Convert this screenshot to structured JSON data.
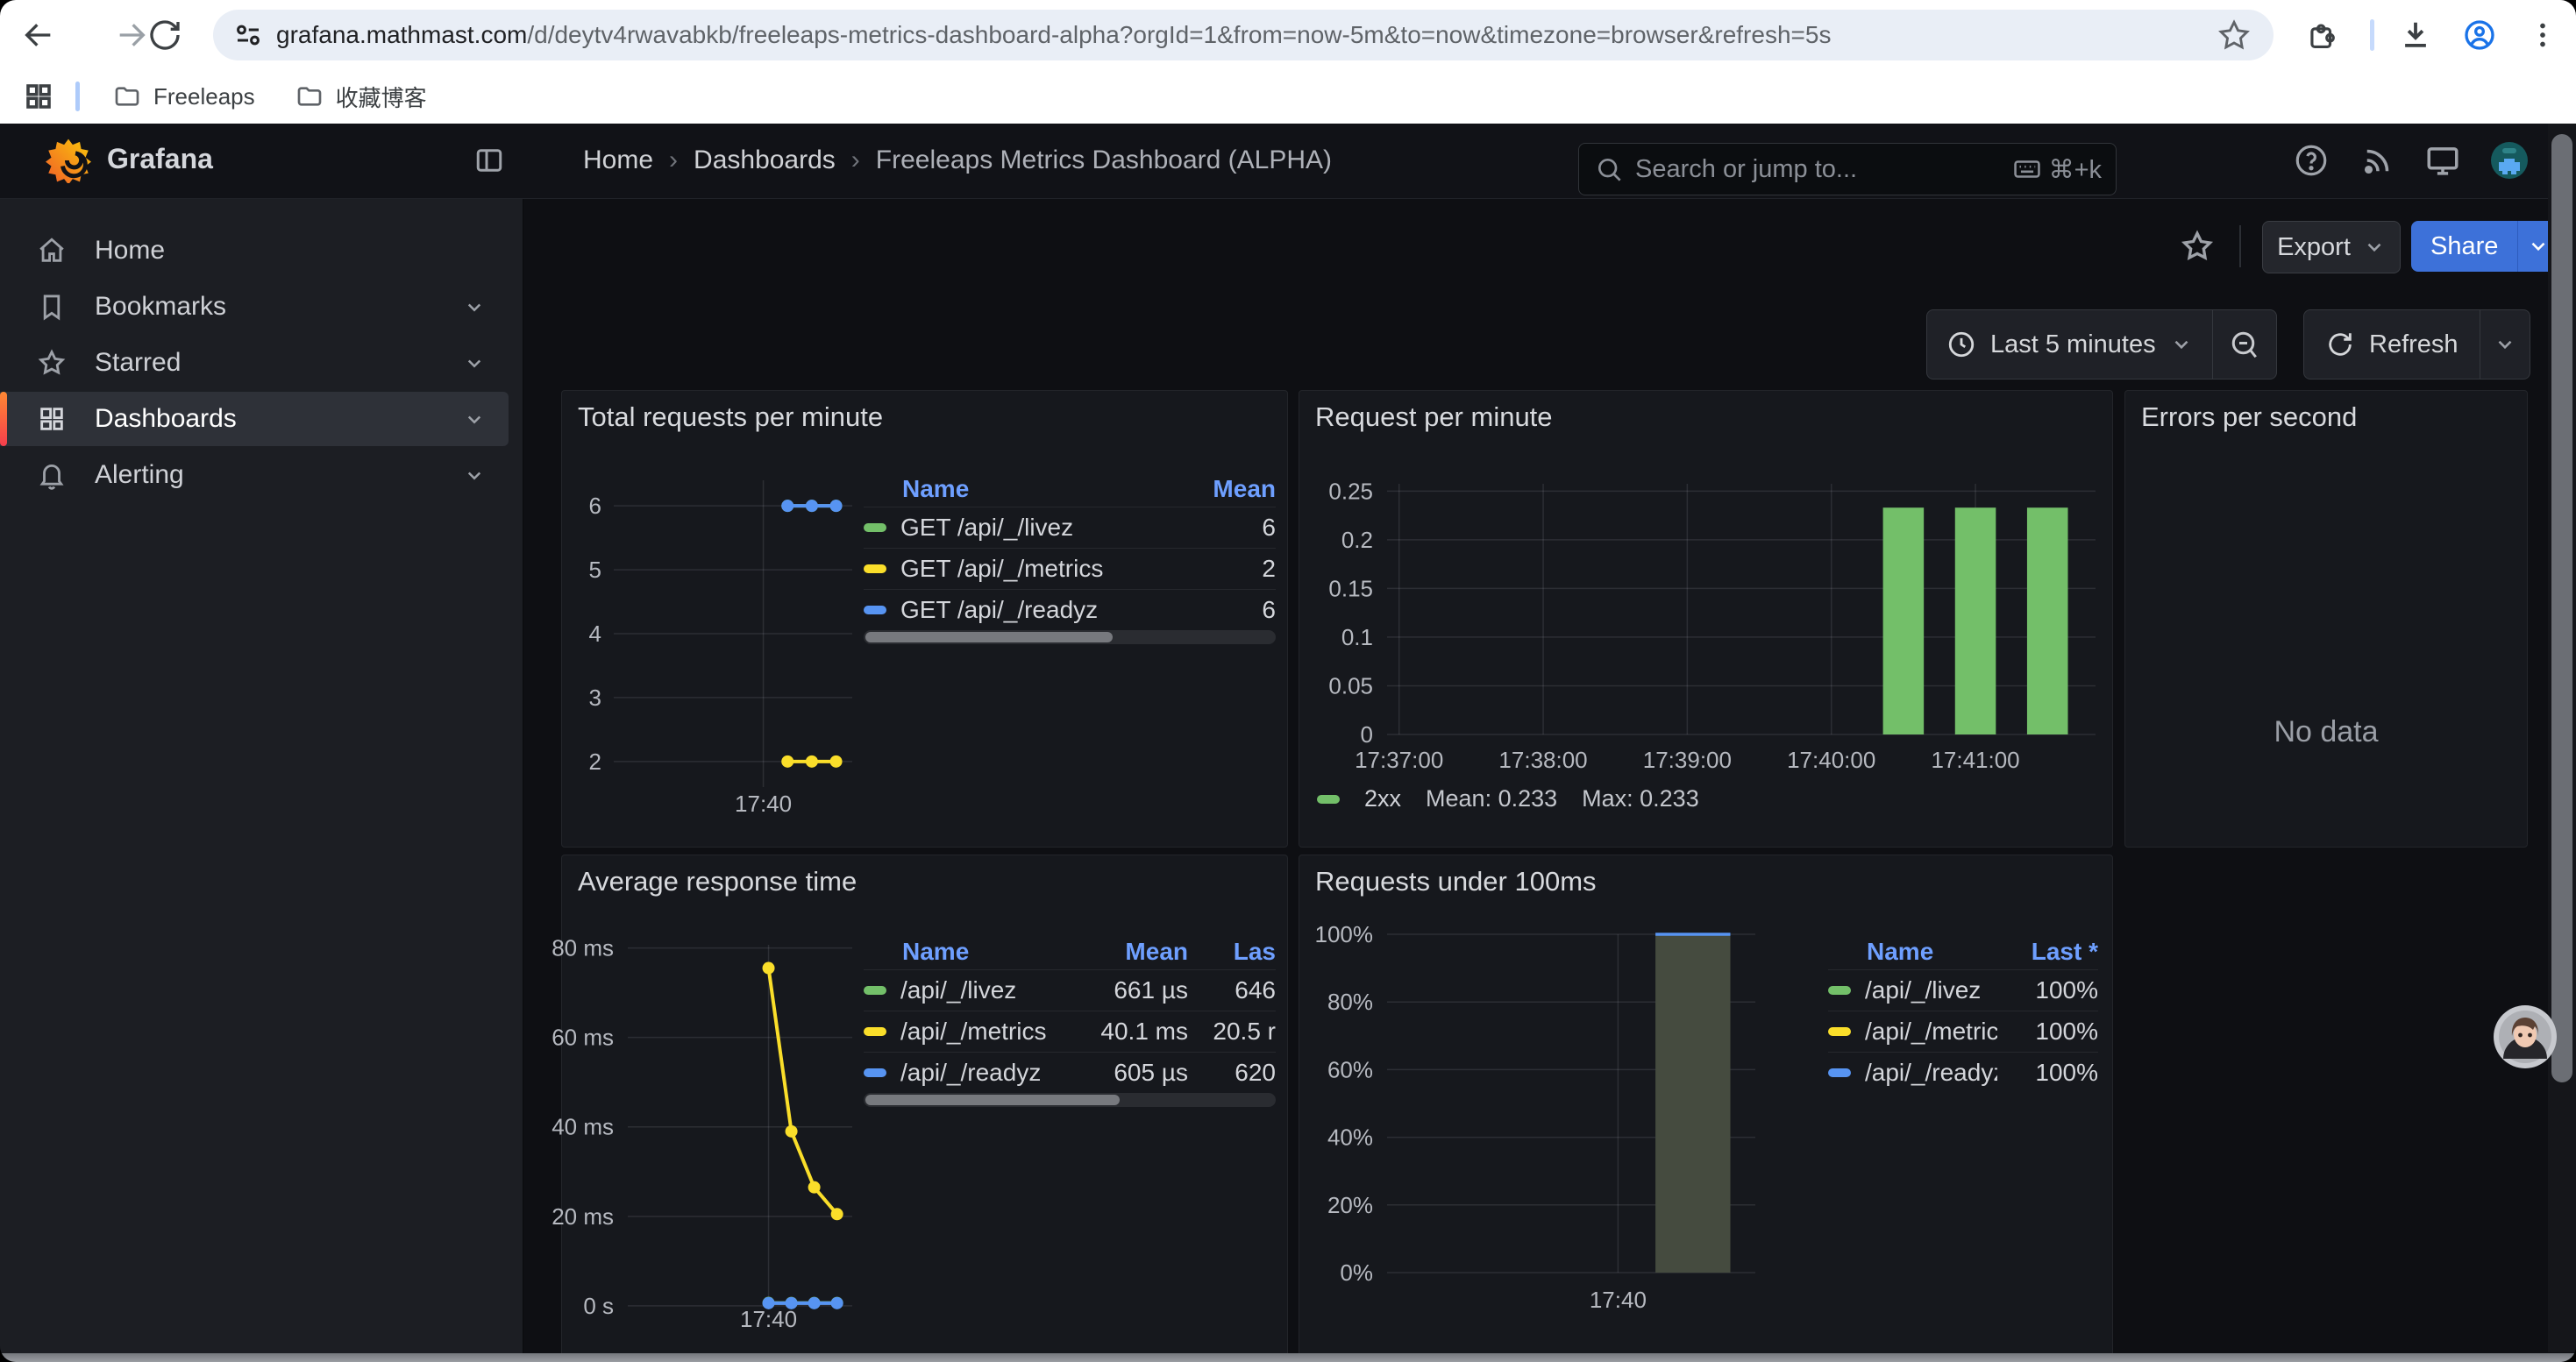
{
  "browser": {
    "url_host": "grafana.mathmast.com",
    "url_path": "/d/deytv4rwavabkb/freeleaps-metrics-dashboard-alpha?orgId=1&from=now-5m&to=now&timezone=browser&refresh=5s",
    "bookmarks": [
      {
        "label": "Freeleaps"
      },
      {
        "label": "收藏博客"
      }
    ]
  },
  "grafana": {
    "brand": "Grafana",
    "breadcrumb": [
      "Home",
      "Dashboards",
      "Freeleaps Metrics Dashboard (ALPHA)"
    ],
    "breadcrumb_sep": "›",
    "search_placeholder": "Search or jump to...",
    "search_shortcut": "⌘+k",
    "sidebar": {
      "items": [
        {
          "label": "Home"
        },
        {
          "label": "Bookmarks"
        },
        {
          "label": "Starred"
        },
        {
          "label": "Dashboards",
          "active": true
        },
        {
          "label": "Alerting"
        }
      ]
    },
    "actions": {
      "export_label": "Export",
      "share_label": "Share"
    },
    "timebar": {
      "range_label": "Last 5 minutes",
      "refresh_label": "Refresh"
    }
  },
  "colors": {
    "green": "#73BF69",
    "yellow": "#FADE2A",
    "blue": "#5794F2",
    "link": "#6E9FFF",
    "primary": "#3D71D9",
    "brand_orange": "#FF7812"
  },
  "chart_data": [
    {
      "id": "total_requests",
      "type": "line",
      "title": "Total requests per minute",
      "x_range": [
        "17:36:55",
        "17:41:50"
      ],
      "x_ticks": [
        {
          "t": "17:40:00",
          "label": "17:40"
        }
      ],
      "y_ticks": [
        6,
        5,
        4,
        3,
        2
      ],
      "ylim": [
        1.6,
        6.4
      ],
      "series": [
        {
          "name": "GET /api/_/livez",
          "color": "#73BF69",
          "x": [
            "17:40:30",
            "17:41:00",
            "17:41:30"
          ],
          "y": [
            6,
            6,
            6
          ]
        },
        {
          "name": "GET /api/_/metrics",
          "color": "#FADE2A",
          "x": [
            "17:40:30",
            "17:41:00",
            "17:41:30"
          ],
          "y": [
            2,
            2,
            2
          ]
        },
        {
          "name": "GET /api/_/readyz",
          "color": "#5794F2",
          "x": [
            "17:40:30",
            "17:41:00",
            "17:41:30"
          ],
          "y": [
            6,
            6,
            6
          ]
        }
      ],
      "legend_table": {
        "headers": [
          "Name",
          "Mean"
        ],
        "rows": [
          {
            "color": "#73BF69",
            "cells": [
              "GET /api/_/livez",
              "6"
            ]
          },
          {
            "color": "#FADE2A",
            "cells": [
              "GET /api/_/metrics",
              "2"
            ]
          },
          {
            "color": "#5794F2",
            "cells": [
              "GET /api/_/readyz",
              "6"
            ]
          }
        ]
      }
    },
    {
      "id": "req_per_min",
      "type": "bar",
      "title": "Request per minute",
      "x_range": [
        "17:36:55",
        "17:41:50"
      ],
      "x_ticks": [
        {
          "t": "17:37:00",
          "label": "17:37:00"
        },
        {
          "t": "17:38:00",
          "label": "17:38:00"
        },
        {
          "t": "17:39:00",
          "label": "17:39:00"
        },
        {
          "t": "17:40:00",
          "label": "17:40:00"
        },
        {
          "t": "17:41:00",
          "label": "17:41:00"
        }
      ],
      "y_ticks": [
        0.25,
        0.2,
        0.15,
        0.1,
        0.05,
        0
      ],
      "ylim": [
        0,
        0.2575
      ],
      "bars": {
        "color": "#73BF69",
        "width_seconds": 17,
        "x": [
          "17:40:30",
          "17:41:00",
          "17:41:30"
        ],
        "y": [
          0.233,
          0.233,
          0.233
        ]
      },
      "legend": {
        "swatch": "#73BF69",
        "name": "2xx",
        "stats": [
          "Mean: 0.233",
          "Max: 0.233"
        ]
      }
    },
    {
      "id": "errors",
      "type": "none",
      "title": "Errors per second",
      "message": "No data"
    },
    {
      "id": "avg_resp",
      "type": "line",
      "title": "Average response time",
      "x_range": [
        "17:36:55",
        "17:41:50"
      ],
      "x_ticks": [
        {
          "t": "17:40:00",
          "label": "17:40"
        }
      ],
      "y_ticks": [
        {
          "v": 80,
          "label": "80 ms"
        },
        {
          "v": 60,
          "label": "60 ms"
        },
        {
          "v": 40,
          "label": "40 ms"
        },
        {
          "v": 20,
          "label": "20 ms"
        },
        {
          "v": 0,
          "label": "0 s"
        }
      ],
      "ylim": [
        -0.8,
        80.7
      ],
      "series": [
        {
          "name": "/api/_/livez",
          "color": "#73BF69",
          "x": [
            "17:40:00",
            "17:40:30",
            "17:41:00",
            "17:41:30"
          ],
          "y": [
            0.66,
            0.65,
            0.64,
            0.65
          ]
        },
        {
          "name": "/api/_/readyz",
          "color": "#5794F2",
          "x": [
            "17:40:00",
            "17:40:30",
            "17:41:00",
            "17:41:30"
          ],
          "y": [
            0.6,
            0.6,
            0.6,
            0.6
          ]
        },
        {
          "name": "/api/_/metrics",
          "color": "#FADE2A",
          "x": [
            "17:40:00",
            "17:40:30",
            "17:41:00",
            "17:41:30"
          ],
          "y": [
            75.5,
            39,
            26.5,
            20.5
          ]
        }
      ],
      "legend_table": {
        "headers": [
          "Name",
          "Mean",
          "Las"
        ],
        "rows": [
          {
            "color": "#73BF69",
            "cells": [
              "/api/_/livez",
              "661 µs",
              "646"
            ]
          },
          {
            "color": "#FADE2A",
            "cells": [
              "/api/_/metrics",
              "40.1 ms",
              "20.5 r"
            ]
          },
          {
            "color": "#5794F2",
            "cells": [
              "/api/_/readyz",
              "605 µs",
              "620"
            ]
          }
        ]
      }
    },
    {
      "id": "under_100ms",
      "type": "area",
      "title": "Requests under 100ms",
      "x_range": [
        "17:36:55",
        "17:41:50"
      ],
      "x_ticks": [
        {
          "t": "17:40:00",
          "label": "17:40"
        }
      ],
      "y_ticks": [
        {
          "v": 100,
          "label": "100%"
        },
        {
          "v": 80,
          "label": "80%"
        },
        {
          "v": 60,
          "label": "60%"
        },
        {
          "v": 40,
          "label": "40%"
        },
        {
          "v": 20,
          "label": "20%"
        },
        {
          "v": 0,
          "label": "0%"
        }
      ],
      "ylim": [
        0,
        100
      ],
      "area": {
        "x": [
          "17:40:30",
          "17:41:30"
        ],
        "y": [
          100,
          100
        ],
        "fill": "#454b3f",
        "line": "#5794F2"
      },
      "legend_table": {
        "headers": [
          "Name",
          "Last *"
        ],
        "rows": [
          {
            "color": "#73BF69",
            "cells": [
              "/api/_/livez",
              "100%"
            ]
          },
          {
            "color": "#FADE2A",
            "cells": [
              "/api/_/metrics",
              "100%"
            ]
          },
          {
            "color": "#5794F2",
            "cells": [
              "/api/_/readyz",
              "100%"
            ]
          }
        ]
      }
    }
  ]
}
